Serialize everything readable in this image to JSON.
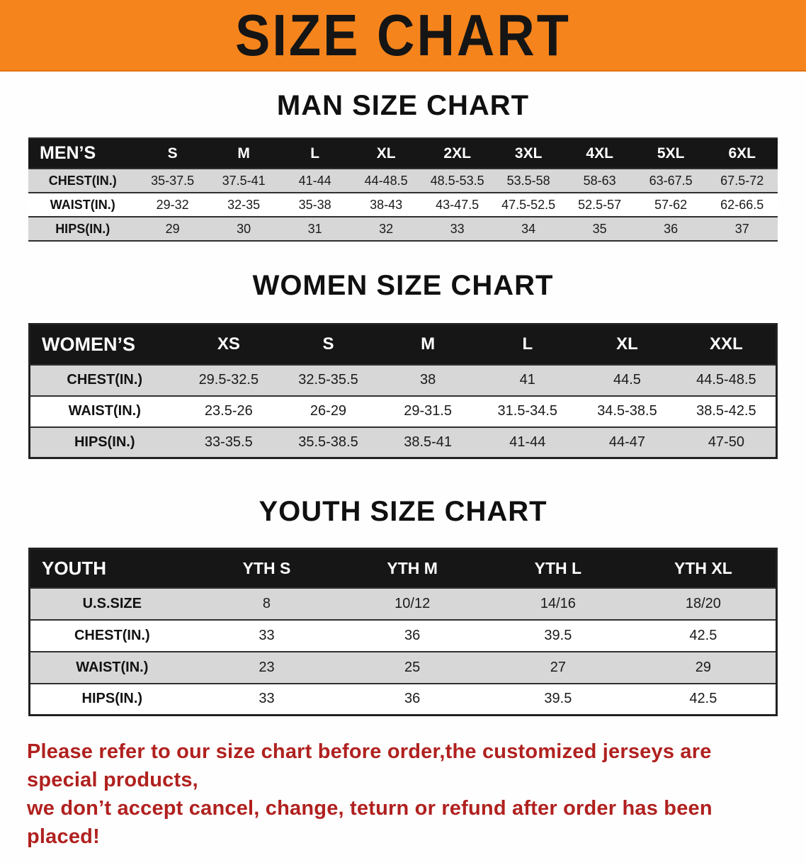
{
  "banner": {
    "title": "SIZE CHART",
    "bg_color": "#F6841C"
  },
  "sections": {
    "men": {
      "heading": "MAN SIZE CHART",
      "table": {
        "header": [
          "MEN’S",
          "S",
          "M",
          "L",
          "XL",
          "2XL",
          "3XL",
          "4XL",
          "5XL",
          "6XL"
        ],
        "rows": [
          {
            "label": "CHEST(IN.)",
            "values": [
              "35-37.5",
              "37.5-41",
              "41-44",
              "44-48.5",
              "48.5-53.5",
              "53.5-58",
              "58-63",
              "63-67.5",
              "67.5-72"
            ]
          },
          {
            "label": "WAIST(IN.)",
            "values": [
              "29-32",
              "32-35",
              "35-38",
              "38-43",
              "43-47.5",
              "47.5-52.5",
              "52.5-57",
              "57-62",
              "62-66.5"
            ]
          },
          {
            "label": "HIPS(IN.)",
            "values": [
              "29",
              "30",
              "31",
              "32",
              "33",
              "34",
              "35",
              "36",
              "37"
            ]
          }
        ]
      }
    },
    "women": {
      "heading": "WOMEN SIZE CHART",
      "table": {
        "header": [
          "WOMEN’S",
          "XS",
          "S",
          "M",
          "L",
          "XL",
          "XXL"
        ],
        "rows": [
          {
            "label": "CHEST(IN.)",
            "values": [
              "29.5-32.5",
              "32.5-35.5",
              "38",
              "41",
              "44.5",
              "44.5-48.5"
            ]
          },
          {
            "label": "WAIST(IN.)",
            "values": [
              "23.5-26",
              "26-29",
              "29-31.5",
              "31.5-34.5",
              "34.5-38.5",
              "38.5-42.5"
            ]
          },
          {
            "label": "HIPS(IN.)",
            "values": [
              "33-35.5",
              "35.5-38.5",
              "38.5-41",
              "41-44",
              "44-47",
              "47-50"
            ]
          }
        ]
      }
    },
    "youth": {
      "heading": "YOUTH SIZE CHART",
      "table": {
        "header": [
          "YOUTH",
          "YTH S",
          "YTH M",
          "YTH L",
          "YTH XL"
        ],
        "rows": [
          {
            "label": "U.S.SIZE",
            "values": [
              "8",
              "10/12",
              "14/16",
              "18/20"
            ]
          },
          {
            "label": "CHEST(IN.)",
            "values": [
              "33",
              "36",
              "39.5",
              "42.5"
            ]
          },
          {
            "label": "WAIST(IN.)",
            "values": [
              "23",
              "25",
              "27",
              "29"
            ]
          },
          {
            "label": "HIPS(IN.)",
            "values": [
              "33",
              "36",
              "39.5",
              "42.5"
            ]
          }
        ]
      }
    }
  },
  "disclaimer": {
    "line1": "Please refer to our size chart before order,the customized jerseys are special products,",
    "line2": "we don’t accept cancel, change, teturn or refund after order has been placed!",
    "color": "#B0211F"
  }
}
